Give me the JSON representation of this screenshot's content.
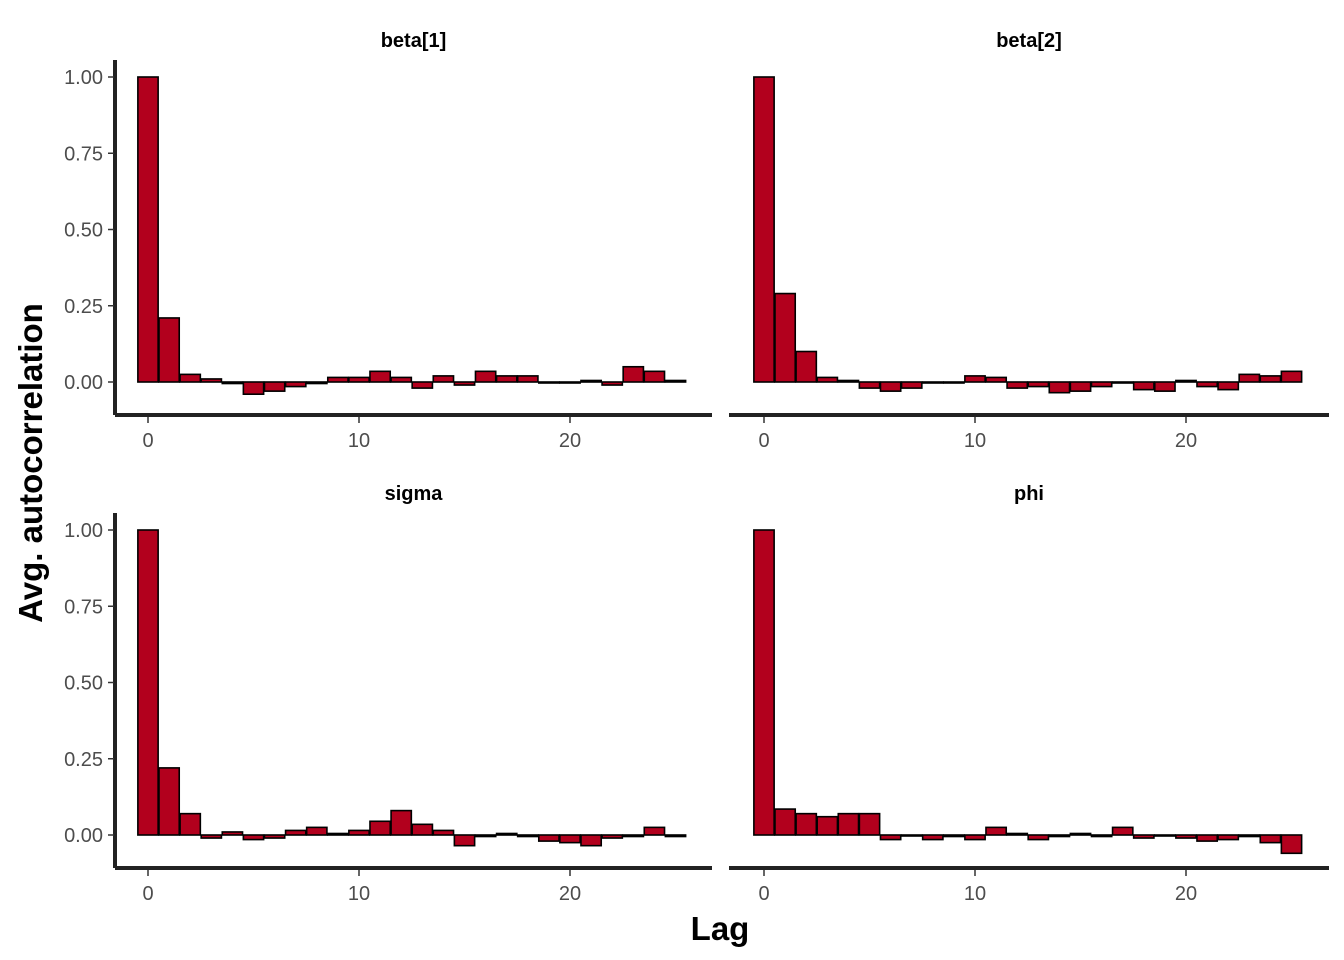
{
  "chart_data": {
    "type": "bar",
    "xlabel": "Lag",
    "ylabel": "Avg.  autocorrelation",
    "xlim": [
      -1,
      26
    ],
    "ylim": [
      -0.11,
      1.05
    ],
    "x_ticks": [
      0,
      10,
      20
    ],
    "y_ticks": [
      0,
      0.25,
      0.5,
      0.75,
      1.0
    ],
    "y_tick_labels": [
      "0.00",
      "0.25",
      "0.50",
      "0.75",
      "1.00"
    ],
    "bar_color": "#b2001d",
    "bar_outline_color": "#000000",
    "grid": false,
    "lags": [
      0,
      1,
      2,
      3,
      4,
      5,
      6,
      7,
      8,
      9,
      10,
      11,
      12,
      13,
      14,
      15,
      16,
      17,
      18,
      19,
      20,
      21,
      22,
      23,
      24,
      25
    ],
    "panels": [
      {
        "title": "beta[1]",
        "values": [
          1.0,
          0.21,
          0.025,
          0.01,
          -0.005,
          -0.04,
          -0.03,
          -0.015,
          -0.005,
          0.015,
          0.015,
          0.035,
          0.015,
          -0.02,
          0.02,
          -0.01,
          0.035,
          0.02,
          0.02,
          0.0,
          0.0,
          0.005,
          -0.01,
          0.05,
          0.035,
          0.005
        ]
      },
      {
        "title": "beta[2]",
        "values": [
          1.0,
          0.29,
          0.1,
          0.015,
          0.005,
          -0.02,
          -0.03,
          -0.02,
          0.0,
          0.0,
          0.02,
          0.015,
          -0.02,
          -0.015,
          -0.035,
          -0.03,
          -0.015,
          0.0,
          -0.025,
          -0.03,
          0.005,
          -0.015,
          -0.025,
          0.025,
          0.02,
          0.035
        ]
      },
      {
        "title": "sigma",
        "values": [
          1.0,
          0.22,
          0.07,
          -0.01,
          0.01,
          -0.015,
          -0.01,
          0.015,
          0.025,
          0.005,
          0.015,
          0.045,
          0.08,
          0.035,
          0.015,
          -0.035,
          -0.005,
          0.005,
          -0.005,
          -0.02,
          -0.025,
          -0.035,
          -0.01,
          -0.005,
          0.025,
          -0.005
        ]
      },
      {
        "title": "phi",
        "values": [
          1.0,
          0.085,
          0.07,
          0.06,
          0.07,
          0.07,
          -0.015,
          0.0,
          -0.015,
          -0.005,
          -0.015,
          0.025,
          0.005,
          -0.015,
          -0.005,
          0.005,
          -0.005,
          0.025,
          -0.01,
          0.0,
          -0.01,
          -0.02,
          -0.015,
          -0.005,
          -0.025,
          -0.06
        ]
      }
    ]
  }
}
